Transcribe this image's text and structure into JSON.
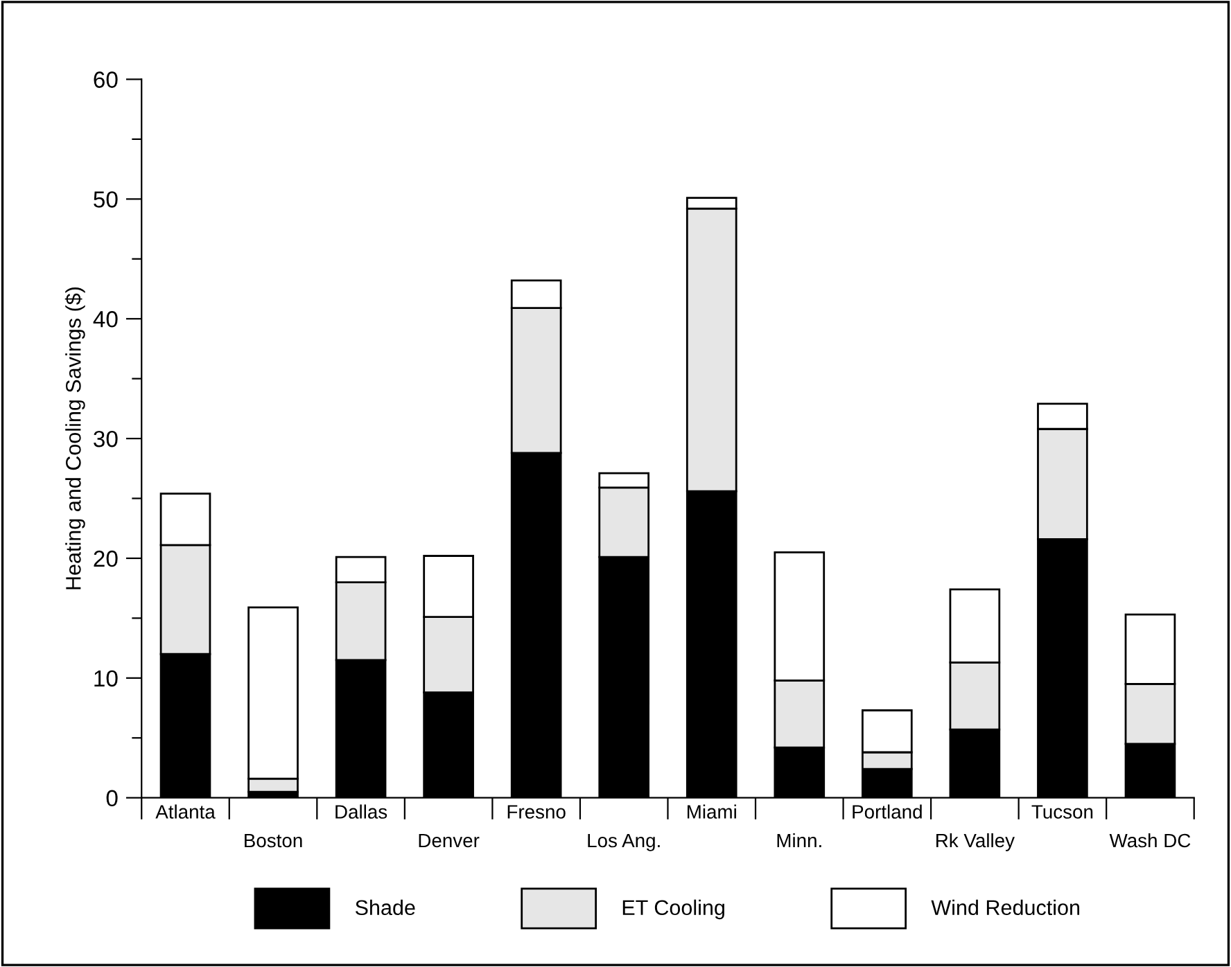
{
  "chart_data": {
    "type": "bar",
    "stacked": true,
    "ylabel": "Heating and Cooling Savings ($)",
    "categories": [
      "Atlanta",
      "Boston",
      "Dallas",
      "Denver",
      "Fresno",
      "Los Ang.",
      "Miami",
      "Minn.",
      "Portland",
      "Rk Valley",
      "Tucson",
      "Wash DC"
    ],
    "series": [
      {
        "name": "Shade",
        "color": "#000000",
        "values": [
          12.0,
          0.5,
          11.5,
          8.8,
          28.8,
          20.1,
          25.6,
          4.2,
          2.4,
          5.7,
          21.6,
          4.5
        ]
      },
      {
        "name": "ET Cooling",
        "color": "#e6e6e6",
        "values": [
          9.1,
          1.1,
          6.5,
          6.3,
          12.1,
          5.8,
          23.6,
          5.6,
          1.4,
          5.6,
          9.2,
          5.0
        ]
      },
      {
        "name": "Wind Reduction",
        "color": "#ffffff",
        "values": [
          4.3,
          14.3,
          2.1,
          5.1,
          2.3,
          1.2,
          0.9,
          10.7,
          3.5,
          6.1,
          2.1,
          5.8
        ]
      }
    ],
    "ylim": [
      0,
      60
    ],
    "yticks": [
      0,
      {
        "value": 5,
        "label": null
      },
      10,
      {
        "value": 15,
        "label": null
      },
      20,
      {
        "value": 25,
        "label": null
      },
      30,
      {
        "value": 35,
        "label": null
      },
      40,
      {
        "value": 45,
        "label": null
      },
      50,
      {
        "value": 55,
        "label": null
      },
      60
    ],
    "grid": false,
    "legend": "bottom"
  }
}
